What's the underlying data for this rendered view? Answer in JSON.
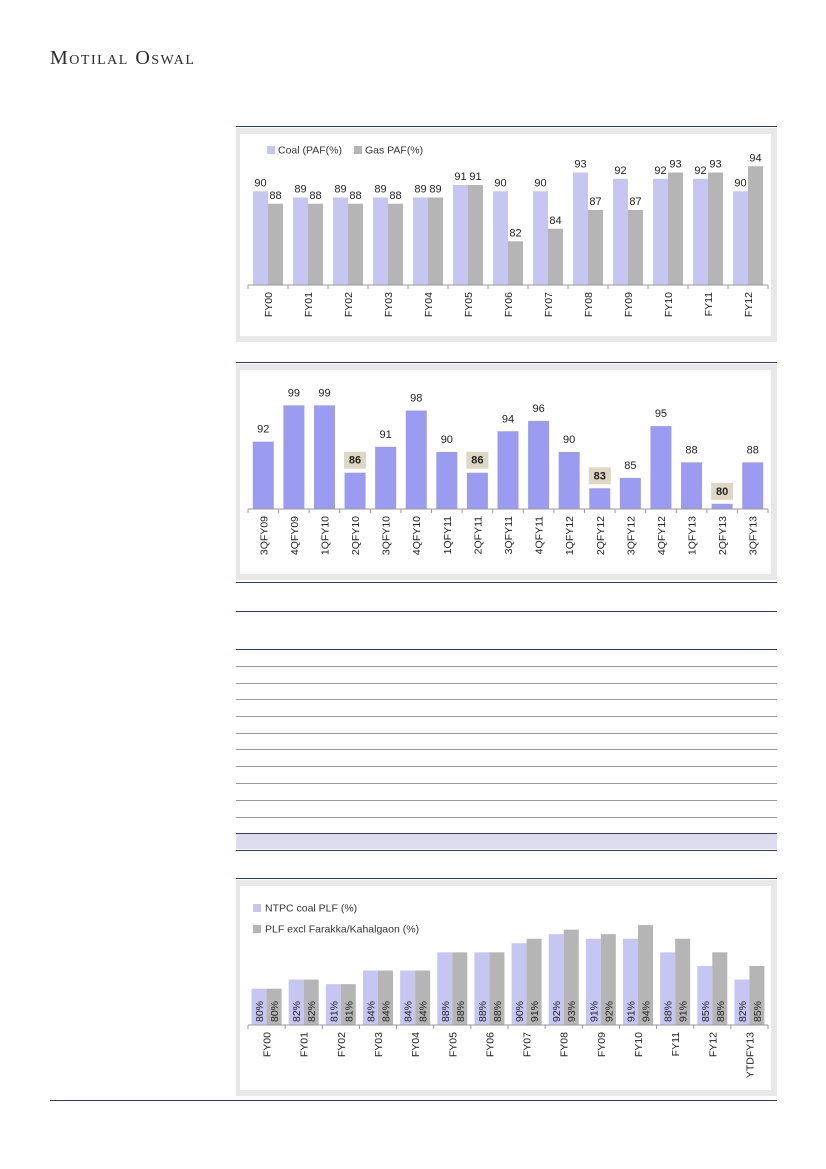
{
  "brand": "Motilal Oswal",
  "colors": {
    "coal": "#c6c6f3",
    "gas": "#b5b5b5",
    "quarterly": "#9b9bf2",
    "label_box": "#ddd7c4",
    "rule": "#2e3b7a",
    "plf": "#c6c6f3",
    "plf_excl": "#b5b5b5"
  },
  "chart_data": [
    {
      "type": "bar",
      "categories": [
        "FY00",
        "FY01",
        "FY02",
        "FY03",
        "FY04",
        "FY05",
        "FY06",
        "FY07",
        "FY08",
        "FY09",
        "FY10",
        "FY11",
        "FY12"
      ],
      "series": [
        {
          "name": "Coal (PAF(%)",
          "values": [
            90,
            89,
            89,
            89,
            89,
            91,
            90,
            90,
            93,
            92,
            92,
            92,
            90
          ]
        },
        {
          "name": "Gas PAF(%)",
          "values": [
            88,
            88,
            88,
            88,
            89,
            91,
            82,
            84,
            87,
            87,
            93,
            93,
            94
          ]
        }
      ],
      "ylim": [
        75,
        95
      ],
      "legend": "top-left"
    },
    {
      "type": "bar",
      "categories": [
        "3QFY09",
        "4QFY09",
        "1QFY10",
        "2QFY10",
        "3QFY10",
        "4QFY10",
        "1QFY11",
        "2QFY11",
        "3QFY11",
        "4QFY11",
        "1QFY12",
        "2QFY12",
        "3QFY12",
        "4QFY12",
        "1QFY13",
        "2QFY13",
        "3QFY13"
      ],
      "values": [
        92,
        99,
        99,
        86,
        91,
        98,
        90,
        86,
        94,
        96,
        90,
        83,
        85,
        95,
        88,
        80,
        88
      ],
      "labels": [
        "92",
        "99",
        "99",
        "86",
        "91",
        "98",
        "90",
        "86",
        "94",
        "96",
        "90",
        "83",
        "85",
        "95",
        "88",
        "80",
        "88"
      ],
      "highlighted": [
        3,
        7,
        11,
        15
      ],
      "ylim": [
        79,
        101
      ]
    },
    {
      "type": "bar",
      "categories": [
        "FY00",
        "FY01",
        "FY02",
        "FY03",
        "FY04",
        "FY05",
        "FY06",
        "FY07",
        "FY08",
        "FY09",
        "FY10",
        "FY11",
        "FY12",
        "YTDFY13"
      ],
      "series": [
        {
          "name": "NTPC coal PLF (%)",
          "values": [
            80,
            82,
            81,
            84,
            84,
            88,
            88,
            90,
            92,
            91,
            91,
            88,
            85,
            82
          ]
        },
        {
          "name": "PLF excl Farakka/Kahalgaon (%)",
          "values": [
            80,
            82,
            81,
            84,
            84,
            88,
            88,
            91,
            93,
            92,
            94,
            91,
            88,
            85
          ]
        }
      ],
      "ylim": [
        72,
        96
      ],
      "legend": "top-left"
    }
  ]
}
